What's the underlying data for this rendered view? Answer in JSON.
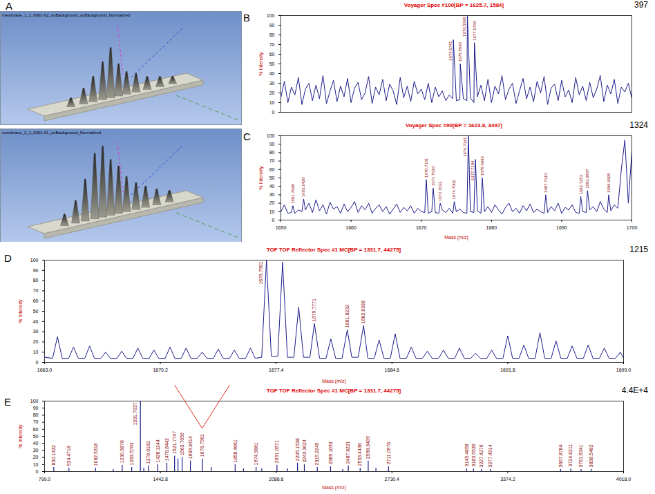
{
  "panel_A": {
    "panel": "A",
    "images": [
      {
        "title": "membrane_1_1_0001-02_noBackground_noBackground_Normalized"
      },
      {
        "title": "membrane_2_1_0001-01_noBackground_Normalized"
      }
    ]
  },
  "chart_data": [
    {
      "panel": "B",
      "type": "line",
      "title": "Voyager Spec #100[BP = 1625.7, 1584]",
      "max_label": "397",
      "ylabel": "% Intensity",
      "color": "#1c1c8c",
      "tick_labels": "y",
      "xlim": [
        1650,
        1700
      ],
      "ylim": [
        0,
        100
      ],
      "yticks": [
        0,
        10,
        20,
        30,
        40,
        50,
        60,
        70,
        80,
        90,
        100
      ],
      "x": [
        1650,
        1650.5,
        1651,
        1651.5,
        1652,
        1652.5,
        1653,
        1653.5,
        1654,
        1654.5,
        1655,
        1655.5,
        1656,
        1656.5,
        1657,
        1657.5,
        1658,
        1658.5,
        1659,
        1659.5,
        1660,
        1660.5,
        1661,
        1661.5,
        1662,
        1662.5,
        1663,
        1663.5,
        1664,
        1664.5,
        1665,
        1665.5,
        1666,
        1666.5,
        1667,
        1667.5,
        1668,
        1668.5,
        1669,
        1669.5,
        1670,
        1670.5,
        1671,
        1671.5,
        1672,
        1672.5,
        1673,
        1673.5,
        1674,
        1674.5,
        1674.5741,
        1675,
        1675.5,
        1675.556,
        1676,
        1676.5,
        1676.5696,
        1677,
        1677.5,
        1677.5766,
        1678,
        1678.5,
        1679,
        1679.5,
        1680,
        1680.5,
        1681,
        1681.5,
        1682,
        1682.5,
        1683,
        1683.5,
        1684,
        1684.5,
        1685,
        1685.5,
        1686,
        1686.5,
        1687,
        1687.5,
        1688,
        1688.5,
        1689,
        1689.5,
        1690,
        1690.5,
        1691,
        1691.5,
        1692,
        1692.5,
        1693,
        1693.5,
        1694,
        1694.5,
        1695,
        1695.5,
        1696,
        1696.5,
        1697,
        1697.5,
        1698,
        1698.5,
        1699,
        1699.5,
        1700
      ],
      "values": [
        15,
        32,
        10,
        26,
        18,
        36,
        8,
        24,
        30,
        12,
        28,
        14,
        38,
        9,
        22,
        33,
        11,
        27,
        16,
        35,
        10,
        25,
        31,
        13,
        20,
        37,
        9,
        26,
        18,
        34,
        12,
        29,
        22,
        8,
        36,
        15,
        27,
        11,
        32,
        19,
        24,
        13,
        30,
        10,
        26,
        16,
        22,
        12,
        18,
        14,
        75,
        12,
        13,
        50,
        14,
        12,
        100,
        15,
        10,
        72,
        16,
        28,
        12,
        34,
        10,
        27,
        19,
        38,
        13,
        24,
        30,
        9,
        22,
        35,
        14,
        26,
        11,
        32,
        20,
        37,
        8,
        25,
        29,
        12,
        33,
        16,
        23,
        10,
        36,
        18,
        27,
        12,
        31,
        15,
        24,
        38,
        11,
        28,
        19,
        34,
        9,
        26,
        21,
        30,
        14
      ],
      "annotations": [
        {
          "x": 1674.5741,
          "y": 75,
          "text": "1674.5741"
        },
        {
          "x": 1675.556,
          "y": 50,
          "text": "1675.5560"
        },
        {
          "x": 1676.5696,
          "y": 100,
          "text": "1676.5696"
        },
        {
          "x": 1677.5766,
          "y": 72,
          "text": "1677.5766"
        }
      ]
    },
    {
      "panel": "C",
      "type": "line",
      "title": "Voyager Spec #90[BP = 1623.8, 3497]",
      "max_label": "1324",
      "ylabel": "% Intensity",
      "xlabel": "Mass (m/z)",
      "color": "#1c1c8c",
      "xlim": [
        1650,
        1700
      ],
      "xticks": [
        1650,
        1660,
        1670,
        1680,
        1690,
        1700
      ],
      "ylim": [
        0,
        100
      ],
      "yticks": [
        0,
        10,
        20,
        30,
        40,
        50,
        60,
        70,
        80,
        90,
        100
      ],
      "x": [
        1650,
        1650.5,
        1651,
        1651.5,
        1651.7098,
        1652,
        1652.5,
        1653,
        1653.2428,
        1653.5,
        1654,
        1654.5,
        1655,
        1655.5,
        1656,
        1656.5,
        1657,
        1657.5,
        1658,
        1658.5,
        1659,
        1659.5,
        1660,
        1660.5,
        1661,
        1661.5,
        1662,
        1662.5,
        1663,
        1663.5,
        1664,
        1664.5,
        1665,
        1665.5,
        1666,
        1666.5,
        1667,
        1667.5,
        1668,
        1668.5,
        1669,
        1669.5,
        1670,
        1670.5,
        1670.7161,
        1671,
        1671.5,
        1671.7016,
        1672,
        1672.5,
        1672.7032,
        1673,
        1673.5,
        1674,
        1674.5,
        1674.7002,
        1675,
        1675.5,
        1676,
        1676.5,
        1676.7141,
        1677,
        1677.5,
        1677.7194,
        1678,
        1678.5,
        1678.6993,
        1679,
        1679.5,
        1680,
        1680.5,
        1681,
        1681.5,
        1682,
        1682.5,
        1683,
        1683.5,
        1684,
        1684.5,
        1685,
        1685.5,
        1686,
        1686.5,
        1687,
        1687.5,
        1687.731,
        1688,
        1688.5,
        1689,
        1689.5,
        1690,
        1690.5,
        1691,
        1691.5,
        1692,
        1692.5,
        1692.7253,
        1693,
        1693.5,
        1693.6807,
        1694,
        1694.5,
        1695,
        1695.5,
        1696,
        1696.5,
        1696.6995,
        1697,
        1697.5,
        1698,
        1698.5,
        1699,
        1699.5,
        1700
      ],
      "values": [
        10,
        18,
        8,
        9,
        17,
        8,
        12,
        10,
        25,
        12,
        20,
        9,
        24,
        11,
        18,
        7,
        21,
        13,
        16,
        8,
        19,
        10,
        15,
        22,
        9,
        17,
        12,
        20,
        8,
        14,
        18,
        10,
        16,
        7,
        13,
        19,
        9,
        15,
        11,
        17,
        8,
        14,
        10,
        9,
        48,
        8,
        10,
        38,
        9,
        8,
        20,
        12,
        9,
        14,
        8,
        22,
        10,
        13,
        9,
        8,
        100,
        10,
        9,
        72,
        11,
        8,
        50,
        10,
        16,
        9,
        18,
        12,
        7,
        15,
        20,
        10,
        14,
        8,
        17,
        11,
        19,
        9,
        13,
        10,
        8,
        30,
        9,
        16,
        11,
        20,
        8,
        15,
        12,
        18,
        9,
        8,
        28,
        10,
        9,
        35,
        12,
        16,
        10,
        22,
        13,
        9,
        30,
        11,
        18,
        14,
        60,
        95,
        20,
        82
      ],
      "annotations": [
        {
          "x": 1651.7098,
          "y": 17,
          "text": "1651.7098"
        },
        {
          "x": 1653.2428,
          "y": 25,
          "text": "1653.2428"
        },
        {
          "x": 1670.7161,
          "y": 48,
          "text": "1670.7161"
        },
        {
          "x": 1671.7016,
          "y": 38,
          "text": "1671.7016"
        },
        {
          "x": 1672.7032,
          "y": 20,
          "text": "1672.7032"
        },
        {
          "x": 1674.7002,
          "y": 22,
          "text": "1674.7002"
        },
        {
          "x": 1676.7141,
          "y": 100,
          "text": "1676.7141"
        },
        {
          "x": 1677.7194,
          "y": 72,
          "text": "1677.7194"
        },
        {
          "x": 1678.6993,
          "y": 50,
          "text": "1678.6993"
        },
        {
          "x": 1687.731,
          "y": 30,
          "text": "1687.7310"
        },
        {
          "x": 1692.7253,
          "y": 28,
          "text": "1692.7253"
        },
        {
          "x": 1693.6807,
          "y": 35,
          "text": "1693.6807"
        },
        {
          "x": 1696.6995,
          "y": 30,
          "text": "1696.6995"
        }
      ]
    },
    {
      "panel": "D",
      "type": "line",
      "title": "TOF TOF Reflector Spec #1 MC[BP = 1331.7, 44275]",
      "max_label": "1215",
      "ylabel": "% Intensity",
      "xlabel": "Mass (m/z)",
      "color": "#1c1c8c",
      "xlim": [
        1663,
        1699
      ],
      "xticks": [
        {
          "value": 1663,
          "label": "1663.0"
        },
        1670.2,
        1677.4,
        1684.6,
        1691.8,
        {
          "value": 1699,
          "label": "1699.0"
        }
      ],
      "ylim": [
        0,
        100
      ],
      "yticks": [
        0,
        10,
        20,
        30,
        40,
        50,
        60,
        70,
        80,
        90,
        100
      ],
      "x": [
        1663.0,
        1663.5,
        1663.8,
        1664.1,
        1664.5,
        1664.8,
        1665.1,
        1665.5,
        1665.8,
        1666.1,
        1666.5,
        1666.8,
        1667.1,
        1667.5,
        1667.8,
        1668.1,
        1668.5,
        1668.8,
        1669.1,
        1669.5,
        1669.8,
        1670.1,
        1670.5,
        1670.8,
        1671.1,
        1671.5,
        1671.8,
        1672.1,
        1672.5,
        1672.8,
        1673.1,
        1673.5,
        1673.8,
        1674.1,
        1674.5,
        1674.8,
        1675.1,
        1675.5,
        1675.8,
        1676.1,
        1676.5,
        1676.7961,
        1677.1,
        1677.5,
        1677.8,
        1678.1,
        1678.5,
        1678.8,
        1679.1,
        1679.5,
        1679.7771,
        1680.1,
        1680.5,
        1680.8,
        1681.1,
        1681.5,
        1681.8232,
        1682.1,
        1682.5,
        1682.8338,
        1683.1,
        1683.5,
        1683.8,
        1684.1,
        1684.5,
        1684.8,
        1685.1,
        1685.5,
        1685.8,
        1686.1,
        1686.5,
        1686.8,
        1687.1,
        1687.5,
        1687.8,
        1688.1,
        1688.5,
        1688.8,
        1689.1,
        1689.5,
        1689.8,
        1690.1,
        1690.5,
        1690.8,
        1691.1,
        1691.5,
        1691.8,
        1692.1,
        1692.5,
        1692.8,
        1693.1,
        1693.5,
        1693.8,
        1694.1,
        1694.5,
        1694.8,
        1695.1,
        1695.5,
        1695.8,
        1696.1,
        1696.5,
        1696.8,
        1697.1,
        1697.5,
        1697.8,
        1698.1,
        1698.5,
        1698.8,
        1699.0
      ],
      "values": [
        5,
        4,
        25,
        4,
        4,
        15,
        4,
        4,
        16,
        4,
        4,
        10,
        4,
        4,
        11,
        4,
        4,
        14,
        4,
        4,
        12,
        4,
        4,
        15,
        4,
        4,
        14,
        4,
        4,
        10,
        4,
        4,
        13,
        4,
        4,
        12,
        4,
        4,
        14,
        4,
        5,
        100,
        6,
        6,
        98,
        5,
        5,
        54,
        5,
        5,
        38,
        4,
        4,
        23,
        4,
        4,
        32,
        5,
        5,
        36,
        4,
        4,
        22,
        4,
        4,
        28,
        4,
        4,
        15,
        4,
        4,
        11,
        4,
        4,
        12,
        4,
        4,
        14,
        4,
        4,
        9,
        4,
        4,
        12,
        4,
        4,
        26,
        4,
        4,
        17,
        4,
        4,
        29,
        4,
        4,
        21,
        4,
        4,
        16,
        4,
        4,
        17,
        4,
        4,
        14,
        4,
        4,
        10,
        4
      ],
      "annotations": [
        {
          "x": 1676.7961,
          "y": 100,
          "text": "1676.7961"
        },
        {
          "x": 1679.7771,
          "y": 38,
          "text": "1679.7771"
        },
        {
          "x": 1681.8232,
          "y": 32,
          "text": "1681.8232"
        },
        {
          "x": 1682.8338,
          "y": 36,
          "text": "1682.8338"
        }
      ]
    },
    {
      "panel": "E",
      "type": "stem",
      "title": "TOF TOF Reflector Spec #1 MC[BP = 1331.7, 44275]",
      "max_label": "4.4E+4",
      "ylabel": "% Intensity",
      "xlabel": "Mass (m/z)",
      "color": "#1c1c8c",
      "xlim": [
        799,
        4018
      ],
      "xticks": [
        {
          "value": 799,
          "label": "799.0"
        },
        1442.8,
        2086.6,
        2730.4,
        3374.2,
        {
          "value": 4018,
          "label": "4018.0"
        }
      ],
      "ylim": [
        0,
        100
      ],
      "yticks": [
        0,
        10,
        20,
        30,
        40,
        50,
        60,
        70,
        80,
        90,
        100
      ],
      "x": [
        850.1432,
        934.4718,
        1082.5318,
        1180.4,
        1230.5878,
        1283.5763,
        1331.7037,
        1350.6,
        1376.0162,
        1428.1244,
        1478.8442,
        1521.7747,
        1540.7,
        1563.7059,
        1609.8414,
        1676.7961,
        1725.8,
        1858.4661,
        1904.9,
        1974.9861,
        2006.6,
        2091.0571,
        2149.9,
        2205.1538,
        2243.3024,
        2315.2245,
        2389.1093,
        2457,
        2487.8221,
        2553.4438,
        2598.3409,
        2641.2,
        2711.0976,
        3145.4858,
        3183.5536,
        3227.4276,
        3277.4914,
        3667.8784,
        3724.8211,
        3781.8341,
        3838.5482
      ],
      "values": [
        6,
        5,
        5,
        3,
        9,
        6,
        100,
        5,
        8,
        10,
        12,
        22,
        18,
        20,
        15,
        18,
        6,
        10,
        4,
        6,
        4,
        9,
        4,
        12,
        10,
        6,
        7,
        3,
        8,
        5,
        15,
        5,
        7,
        4,
        4,
        3,
        3,
        3,
        4,
        3,
        3
      ],
      "annotations": [
        {
          "x": 850.1432,
          "y": 6,
          "text": "850.1432"
        },
        {
          "x": 934.4718,
          "y": 5,
          "text": "934.4718"
        },
        {
          "x": 1082.5318,
          "y": 5,
          "text": "1082.5318"
        },
        {
          "x": 1230.5878,
          "y": 9,
          "text": "1230.5878"
        },
        {
          "x": 1283.5763,
          "y": 6,
          "text": "1283.5763"
        },
        {
          "x": 1331.7037,
          "y": 100,
          "text": "1331.7037"
        },
        {
          "x": 1376.0162,
          "y": 8,
          "text": "1376.0162"
        },
        {
          "x": 1428.1244,
          "y": 10,
          "text": "1428.1244"
        },
        {
          "x": 1478.8442,
          "y": 12,
          "text": "1478.8442"
        },
        {
          "x": 1521.7747,
          "y": 22,
          "text": "1521.7747"
        },
        {
          "x": 1563.7059,
          "y": 20,
          "text": "1563.7059"
        },
        {
          "x": 1609.8414,
          "y": 15,
          "text": "1609.8414"
        },
        {
          "x": 1676.7961,
          "y": 18,
          "text": "1676.7961"
        },
        {
          "x": 1858.4661,
          "y": 10,
          "text": "1858.4661"
        },
        {
          "x": 1974.9861,
          "y": 6,
          "text": "1974.9861"
        },
        {
          "x": 2091.0571,
          "y": 9,
          "text": "2091.0571"
        },
        {
          "x": 2205.1538,
          "y": 12,
          "text": "2205.1538"
        },
        {
          "x": 2243.3024,
          "y": 10,
          "text": "2243.3024"
        },
        {
          "x": 2315.2245,
          "y": 6,
          "text": "2315.2245"
        },
        {
          "x": 2389.1093,
          "y": 7,
          "text": "2389.1093"
        },
        {
          "x": 2487.8221,
          "y": 8,
          "text": "2487.8221"
        },
        {
          "x": 2553.4438,
          "y": 5,
          "text": "2553.4438"
        },
        {
          "x": 2598.3409,
          "y": 15,
          "text": "2598.3409"
        },
        {
          "x": 2711.0976,
          "y": 7,
          "text": "2711.0976"
        },
        {
          "x": 3145.4858,
          "y": 4,
          "text": "3145.4858"
        },
        {
          "x": 3183.5536,
          "y": 4,
          "text": "3183.5536"
        },
        {
          "x": 3227.4276,
          "y": 3,
          "text": "3227.4276"
        },
        {
          "x": 3277.4914,
          "y": 3,
          "text": "3277.4914"
        },
        {
          "x": 3667.8784,
          "y": 3,
          "text": "3667.8784"
        },
        {
          "x": 3724.8211,
          "y": 4,
          "text": "3724.8211"
        },
        {
          "x": 3781.8341,
          "y": 3,
          "text": "3781.8341"
        },
        {
          "x": 3838.5482,
          "y": 3,
          "text": "3838.5482"
        }
      ]
    }
  ]
}
